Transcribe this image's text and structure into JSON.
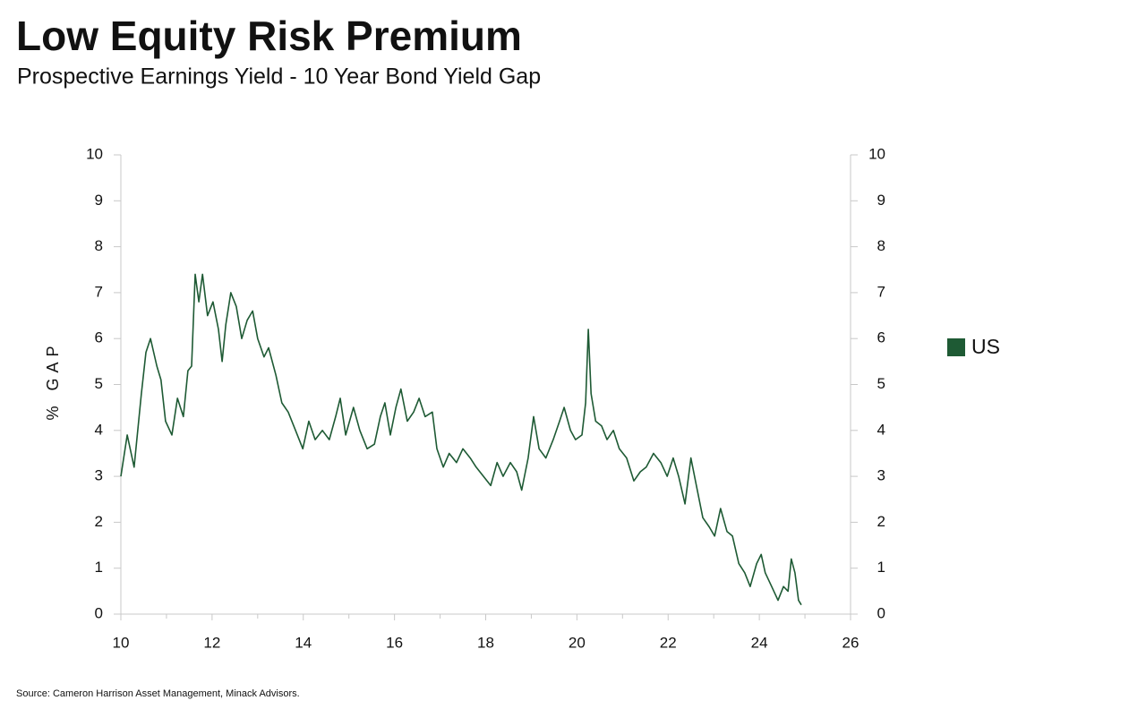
{
  "chart_data": {
    "type": "line",
    "title": "Low Equity Risk Premium",
    "subtitle": "Prospective Earnings Yield - 10 Year Bond Yield Gap",
    "y_label": "% GAP",
    "source": "Source: Cameron Harrison Asset Management, Minack Advisors.",
    "xlim": [
      10,
      26
    ],
    "xticks": [
      10,
      12,
      14,
      16,
      18,
      20,
      22,
      24,
      26
    ],
    "xminorticks": [
      11,
      13,
      15,
      17,
      19,
      21,
      23,
      25
    ],
    "ylim": [
      0,
      10
    ],
    "yticks": [
      0,
      1,
      2,
      3,
      4,
      5,
      6,
      7,
      8,
      9,
      10
    ],
    "y2lim": [
      0,
      10
    ],
    "y2ticks": [
      0,
      1,
      2,
      3,
      4,
      5,
      6,
      7,
      8,
      9,
      10
    ],
    "grid": false,
    "legend": "right",
    "x": [
      10.0,
      10.14,
      10.29,
      10.45,
      10.55,
      10.65,
      10.79,
      10.88,
      10.98,
      11.12,
      11.24,
      11.37,
      11.47,
      11.55,
      11.63,
      11.71,
      11.79,
      11.9,
      12.02,
      12.14,
      12.22,
      12.3,
      12.41,
      12.53,
      12.65,
      12.77,
      12.89,
      13.0,
      13.14,
      13.24,
      13.4,
      13.53,
      13.67,
      13.83,
      13.99,
      14.12,
      14.26,
      14.42,
      14.57,
      14.71,
      14.81,
      14.93,
      15.1,
      15.24,
      15.4,
      15.56,
      15.69,
      15.79,
      15.91,
      16.03,
      16.14,
      16.28,
      16.42,
      16.54,
      16.67,
      16.83,
      16.93,
      17.07,
      17.2,
      17.36,
      17.5,
      17.66,
      17.79,
      17.95,
      18.11,
      18.25,
      18.38,
      18.54,
      18.68,
      18.79,
      18.93,
      19.05,
      19.17,
      19.32,
      19.48,
      19.62,
      19.72,
      19.86,
      19.97,
      20.11,
      20.19,
      20.25,
      20.31,
      20.41,
      20.54,
      20.66,
      20.8,
      20.93,
      21.09,
      21.25,
      21.39,
      21.52,
      21.68,
      21.84,
      21.98,
      22.11,
      22.23,
      22.37,
      22.5,
      22.62,
      22.76,
      22.9,
      23.02,
      23.15,
      23.29,
      23.41,
      23.55,
      23.68,
      23.8,
      23.94,
      24.04,
      24.13,
      24.27,
      24.41,
      24.53,
      24.63,
      24.7,
      24.78,
      24.86,
      24.92
    ],
    "series": [
      {
        "name": "US",
        "color": "#1e5a34",
        "values": [
          3.0,
          3.9,
          3.2,
          4.8,
          5.7,
          6.0,
          5.4,
          5.1,
          4.2,
          3.9,
          4.7,
          4.3,
          5.3,
          5.4,
          7.4,
          6.8,
          7.4,
          6.5,
          6.8,
          6.2,
          5.5,
          6.3,
          7.0,
          6.7,
          6.0,
          6.4,
          6.6,
          6.0,
          5.6,
          5.8,
          5.2,
          4.6,
          4.4,
          4.0,
          3.6,
          4.2,
          3.8,
          4.0,
          3.8,
          4.3,
          4.7,
          3.9,
          4.5,
          4.0,
          3.6,
          3.7,
          4.3,
          4.6,
          3.9,
          4.5,
          4.9,
          4.2,
          4.4,
          4.7,
          4.3,
          4.4,
          3.6,
          3.2,
          3.5,
          3.3,
          3.6,
          3.4,
          3.2,
          3.0,
          2.8,
          3.3,
          3.0,
          3.3,
          3.1,
          2.7,
          3.4,
          4.3,
          3.6,
          3.4,
          3.8,
          4.2,
          4.5,
          4.0,
          3.8,
          3.9,
          4.6,
          6.2,
          4.8,
          4.2,
          4.1,
          3.8,
          4.0,
          3.6,
          3.4,
          2.9,
          3.1,
          3.2,
          3.5,
          3.3,
          3.0,
          3.4,
          3.0,
          2.4,
          3.4,
          2.8,
          2.1,
          1.9,
          1.7,
          2.3,
          1.8,
          1.7,
          1.1,
          0.9,
          0.6,
          1.1,
          1.3,
          0.9,
          0.6,
          0.3,
          0.6,
          0.5,
          1.2,
          0.9,
          0.3,
          0.2
        ]
      }
    ]
  }
}
